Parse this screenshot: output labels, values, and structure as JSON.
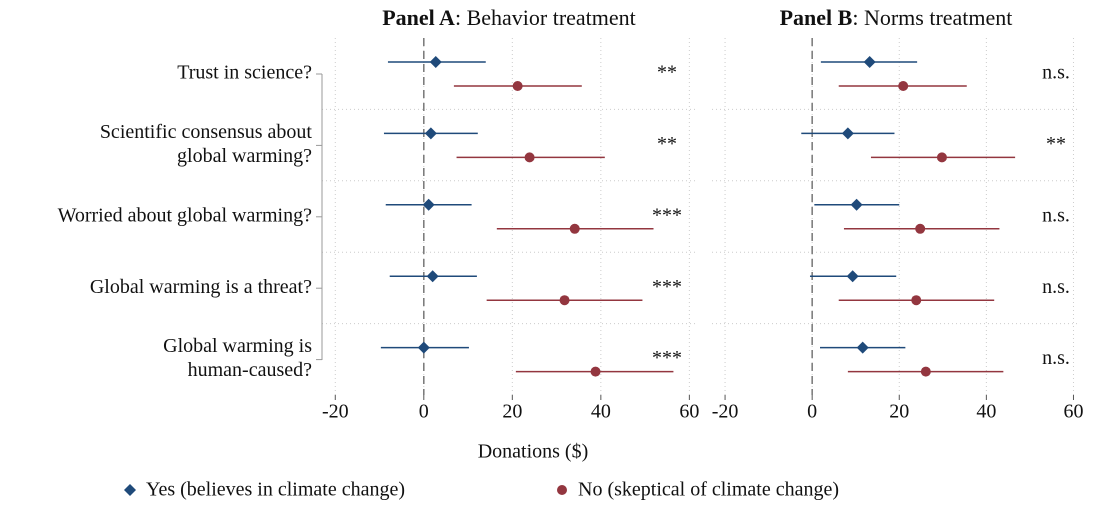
{
  "chart_data": [
    {
      "type": "dot-ci",
      "title": [
        "Panel A",
        ": Behavior treatment"
      ],
      "categories": [
        [
          "Trust in science?"
        ],
        [
          "Scientific consensus about",
          "global warming?"
        ],
        [
          "Worried about global warming?"
        ],
        [
          "Global warming is a threat?"
        ],
        [
          "Global warming is",
          "human-caused?"
        ]
      ],
      "xlabel": "Donations ($)",
      "xlim": [
        -23,
        61.5
      ],
      "xticks": [
        -20,
        0,
        20,
        40,
        60
      ],
      "xline": 0,
      "grid": true,
      "series": [
        {
          "name": "Yes (believes in climate change)",
          "color": "#1f4a7a",
          "marker": "diamond",
          "values": [
            2.7,
            1.6,
            1.1,
            2.0,
            0
          ],
          "lower": [
            -8.1,
            -9.0,
            -8.6,
            -7.7,
            -9.7
          ],
          "upper": [
            14.0,
            12.2,
            10.8,
            12.0,
            10.2
          ]
        },
        {
          "name": "No (skeptical of climate change)",
          "color": "#93363f",
          "marker": "circle",
          "values": [
            21.2,
            23.9,
            34.1,
            31.8,
            38.8
          ],
          "lower": [
            6.8,
            7.4,
            16.5,
            14.2,
            20.8
          ],
          "upper": [
            35.7,
            40.9,
            51.9,
            49.4,
            56.4
          ]
        }
      ],
      "annotations": [
        "**",
        "**",
        "***",
        "***",
        "***"
      ]
    },
    {
      "type": "dot-ci",
      "title": [
        "Panel B",
        ": Norms treatment"
      ],
      "xlim": [
        -23,
        61.5
      ],
      "xticks": [
        -20,
        0,
        20,
        40,
        60
      ],
      "xline": 0,
      "grid": true,
      "series": [
        {
          "name": "Yes (believes in climate change)",
          "color": "#1f4a7a",
          "marker": "diamond",
          "values": [
            13.2,
            8.2,
            10.2,
            9.3,
            11.6
          ],
          "lower": [
            2.0,
            -2.5,
            0.5,
            -0.5,
            1.8
          ],
          "upper": [
            24.1,
            18.9,
            20.0,
            19.3,
            21.4
          ]
        },
        {
          "name": "No (skeptical of climate change)",
          "color": "#93363f",
          "marker": "circle",
          "values": [
            20.9,
            29.8,
            24.8,
            23.9,
            26.1
          ],
          "lower": [
            6.1,
            13.5,
            7.3,
            6.1,
            8.2
          ],
          "upper": [
            35.5,
            46.6,
            43.0,
            41.8,
            43.9
          ]
        }
      ],
      "annotations": [
        "n.s.",
        "**",
        "n.s.",
        "n.s.",
        "n.s."
      ]
    }
  ]
}
